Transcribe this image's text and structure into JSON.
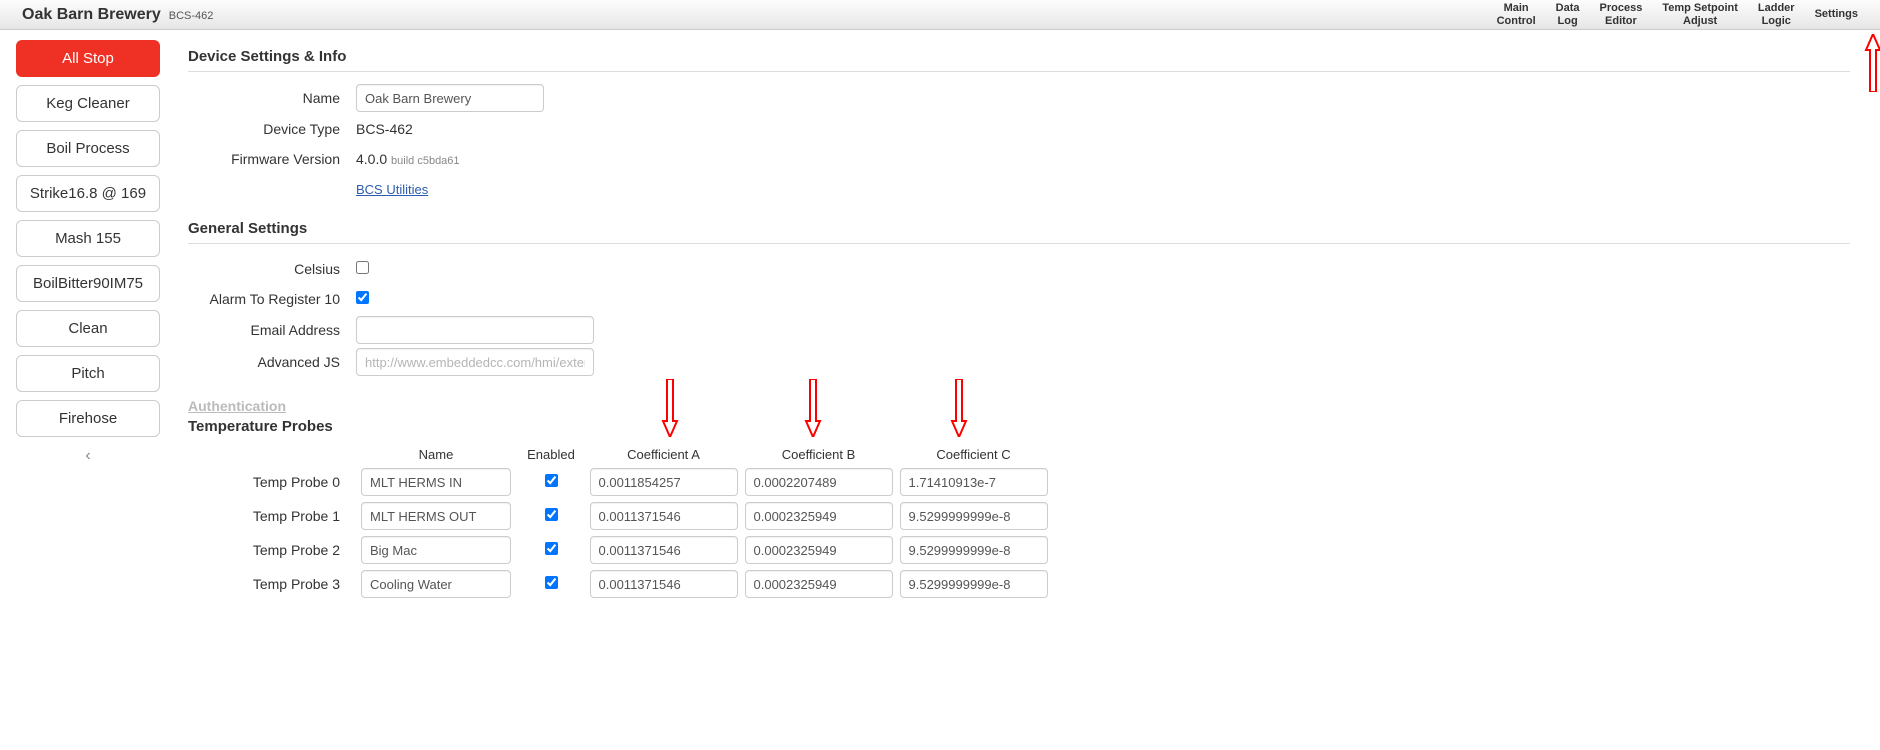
{
  "header": {
    "title": "Oak Barn Brewery",
    "subtitle": "BCS-462",
    "nav": [
      {
        "l1": "Main",
        "l2": "Control"
      },
      {
        "l1": "Data",
        "l2": "Log"
      },
      {
        "l1": "Process",
        "l2": "Editor"
      },
      {
        "l1": "Temp Setpoint",
        "l2": "Adjust"
      },
      {
        "l1": "Ladder",
        "l2": "Logic"
      },
      {
        "l1": "Settings",
        "l2": ""
      }
    ]
  },
  "sidebar": {
    "allstop": "All Stop",
    "items": [
      "Keg Cleaner",
      "Boil Process",
      "Strike16.8 @ 169",
      "Mash 155",
      "BoilBitter90IM75",
      "Clean",
      "Pitch",
      "Firehose"
    ]
  },
  "device": {
    "section_title": "Device Settings & Info",
    "labels": {
      "name": "Name",
      "type": "Device Type",
      "fw": "Firmware Version"
    },
    "name_value": "Oak Barn Brewery",
    "type_value": "BCS-462",
    "fw_value": "4.0.0",
    "fw_build": "build c5bda61",
    "utilities_link": "BCS Utilities"
  },
  "general": {
    "section_title": "General Settings",
    "labels": {
      "celsius": "Celsius",
      "alarm": "Alarm To Register 10",
      "email": "Email Address",
      "js": "Advanced JS"
    },
    "celsius_checked": false,
    "alarm_checked": true,
    "email_value": "",
    "js_placeholder": "http://www.embeddedcc.com/hmi/external.js"
  },
  "auth_link": "Authentication",
  "probes": {
    "section_title": "Temperature Probes",
    "headers": {
      "name": "Name",
      "enabled": "Enabled",
      "a": "Coefficient A",
      "b": "Coefficient B",
      "c": "Coefficient C"
    },
    "rows": [
      {
        "label": "Temp Probe 0",
        "name": "MLT HERMS IN",
        "enabled": true,
        "a": "0.0011854257",
        "b": "0.0002207489",
        "c": "1.71410913e-7"
      },
      {
        "label": "Temp Probe 1",
        "name": "MLT HERMS OUT",
        "enabled": true,
        "a": "0.0011371546",
        "b": "0.0002325949",
        "c": "9.5299999999e-8"
      },
      {
        "label": "Temp Probe 2",
        "name": "Big Mac",
        "enabled": true,
        "a": "0.0011371546",
        "b": "0.0002325949",
        "c": "9.5299999999e-8"
      },
      {
        "label": "Temp Probe 3",
        "name": "Cooling Water",
        "enabled": true,
        "a": "0.0011371546",
        "b": "0.0002325949",
        "c": "9.5299999999e-8"
      }
    ]
  }
}
